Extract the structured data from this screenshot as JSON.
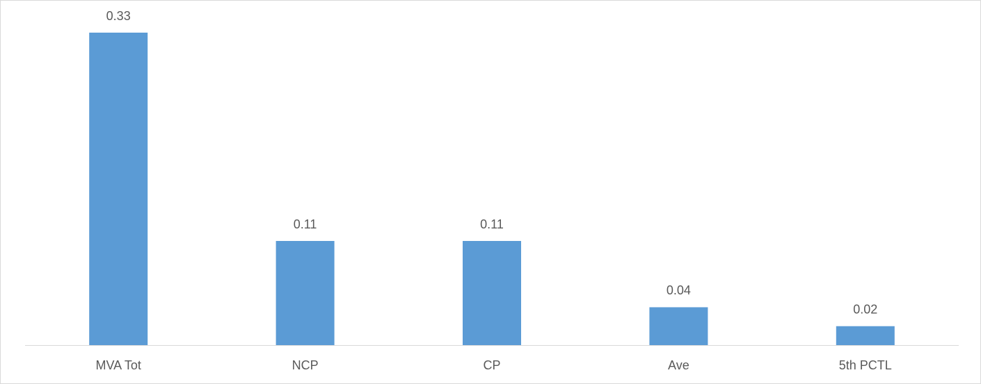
{
  "chart_data": {
    "type": "bar",
    "categories": [
      "MVA Tot",
      "NCP",
      "CP",
      "Ave",
      "5th PCTL"
    ],
    "values": [
      0.33,
      0.11,
      0.11,
      0.04,
      0.02
    ],
    "color": "#5b9bd5"
  }
}
